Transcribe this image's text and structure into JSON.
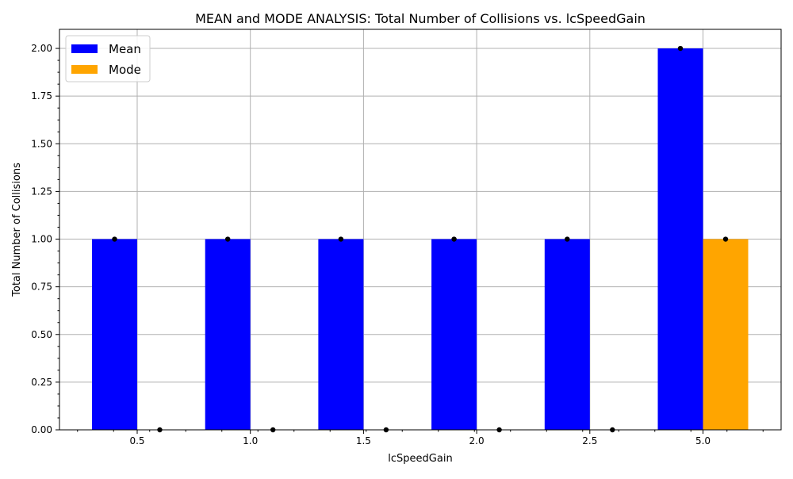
{
  "chart_data": {
    "type": "bar",
    "title": "MEAN and MODE ANALYSIS: Total Number of Collisions vs. lcSpeedGain",
    "xlabel": "lcSpeedGain",
    "ylabel": "Total Number of Collisions",
    "categories": [
      "0.5",
      "1.0",
      "1.5",
      "2.0",
      "2.5",
      "5.0"
    ],
    "series": [
      {
        "name": "Mean",
        "color": "#0000ff",
        "values": [
          1,
          1,
          1,
          1,
          1,
          2
        ]
      },
      {
        "name": "Mode",
        "color": "#ffa500",
        "values": [
          0,
          0,
          0,
          0,
          0,
          1
        ]
      }
    ],
    "yticks": [
      "0.00",
      "0.25",
      "0.50",
      "0.75",
      "1.00",
      "1.25",
      "1.50",
      "1.75",
      "2.00"
    ],
    "ylim": [
      0,
      2.1
    ],
    "grid": true,
    "legend": "top-left",
    "marker_color": "#000000"
  }
}
